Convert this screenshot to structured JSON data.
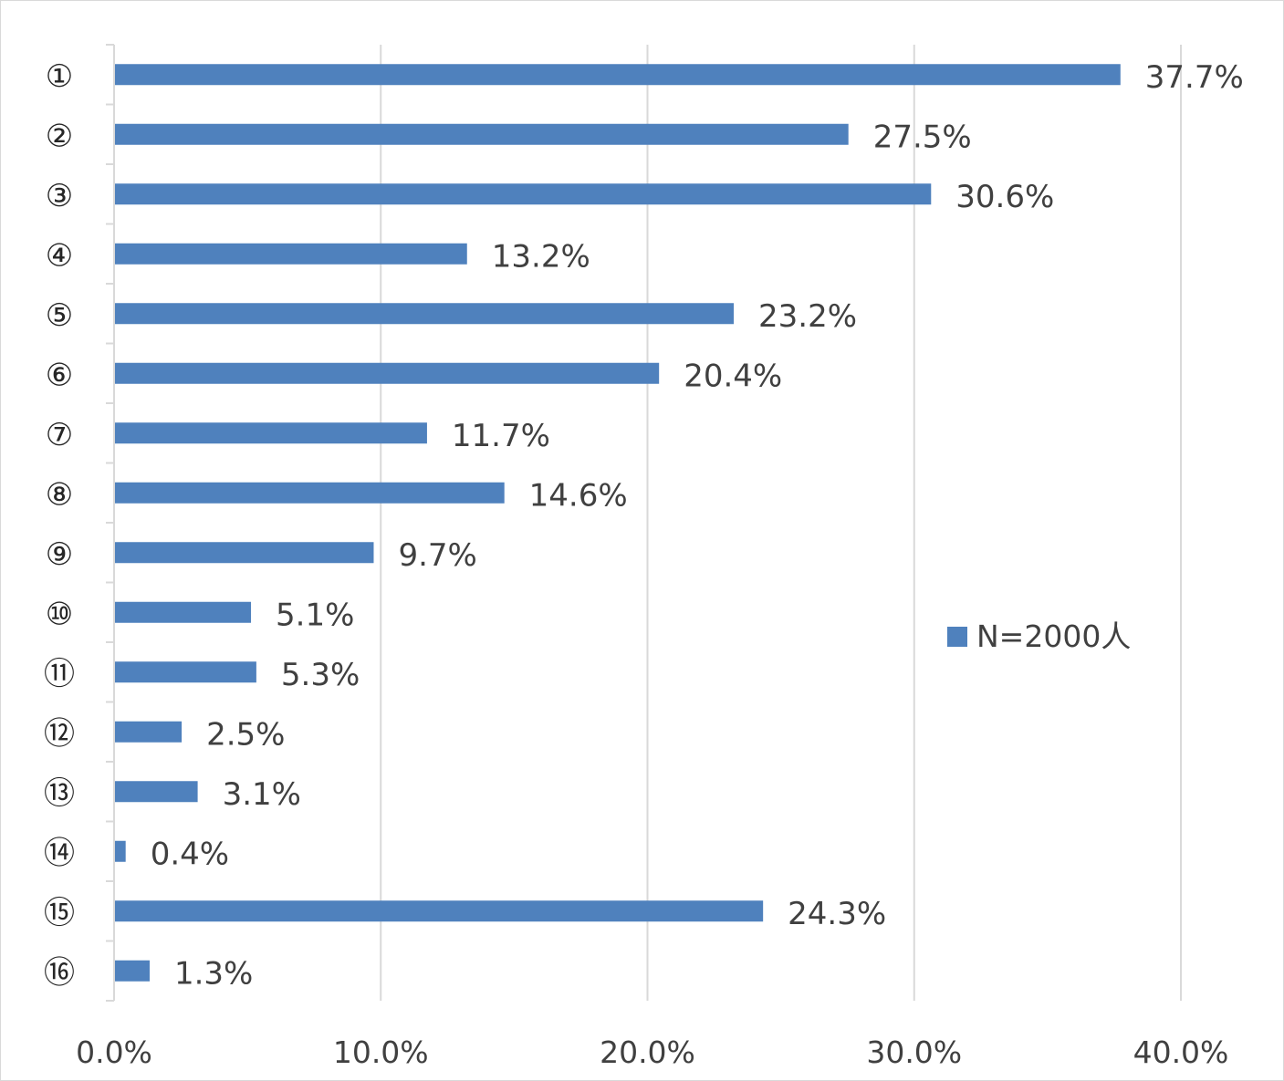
{
  "chart_data": {
    "type": "bar",
    "orientation": "horizontal",
    "categories": [
      "①",
      "②",
      "③",
      "④",
      "⑤",
      "⑥",
      "⑦",
      "⑧",
      "⑨",
      "⑩",
      "⑪",
      "⑫",
      "⑬",
      "⑭",
      "⑮",
      "⑯"
    ],
    "series": [
      {
        "name": "N=2000人",
        "values": [
          37.7,
          27.5,
          30.6,
          13.2,
          23.2,
          20.4,
          11.7,
          14.6,
          9.7,
          5.1,
          5.3,
          2.5,
          3.1,
          0.4,
          24.3,
          1.3
        ],
        "labels": [
          "37.7%",
          "27.5%",
          "30.6%",
          "13.2%",
          "23.2%",
          "20.4%",
          "11.7%",
          "14.6%",
          "9.7%",
          "5.1%",
          "5.3%",
          "2.5%",
          "3.1%",
          "0.4%",
          "24.3%",
          "1.3%"
        ]
      }
    ],
    "xlim": [
      0,
      40
    ],
    "xticks": [
      0,
      10,
      20,
      30,
      40
    ],
    "xtick_labels": [
      "0.0%",
      "10.0%",
      "20.0%",
      "30.0%",
      "40.0%"
    ],
    "grid": "vertical",
    "legend_position": "right",
    "title": "",
    "xlabel": "",
    "ylabel": "",
    "bar_color": "#4f81bd"
  }
}
